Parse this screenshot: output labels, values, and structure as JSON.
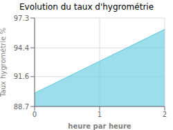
{
  "chart_data": {
    "type": "area",
    "title": "Evolution du taux d'hygrométrie",
    "xlabel": "heure par heure",
    "ylabel": "Taux hygrométrie %",
    "x": [
      0,
      2
    ],
    "values": [
      90.0,
      96.2
    ],
    "y_fill_bottom": 88.7,
    "xlim": [
      0,
      2
    ],
    "ylim": [
      88.7,
      97.3
    ],
    "xticks": [
      0,
      1,
      2
    ],
    "yticks": [
      88.7,
      91.6,
      94.4,
      97.3
    ],
    "color": "#5bc8e0",
    "grid": true
  }
}
